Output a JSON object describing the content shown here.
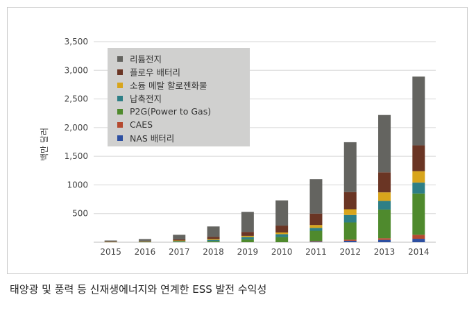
{
  "caption": "태양광 및 풍력 등 신재생에너지와 연계한 ESS 발전 수익성",
  "chart_data": {
    "type": "bar",
    "stacked": true,
    "ylabel": "백만 달러",
    "xlabel": "",
    "title": "",
    "ylim": [
      0,
      3500
    ],
    "yticks": [
      "500",
      "1000",
      "1,500",
      "2,000",
      "2,500",
      "3,000",
      "3,500"
    ],
    "ytick_values": [
      500,
      1000,
      1500,
      2000,
      2500,
      3000,
      3500
    ],
    "grid": true,
    "legend_position": "top-left",
    "categories": [
      "2015",
      "2016",
      "2017",
      "2018",
      "2019",
      "2010",
      "2011",
      "2012",
      "2013",
      "2014"
    ],
    "series": [
      {
        "name": "NAS 배터리",
        "color": "#2d4fa1",
        "values": [
          0,
          0,
          0,
          0,
          0,
          0,
          10,
          25,
          40,
          60
        ]
      },
      {
        "name": "CAES",
        "color": "#b5492f",
        "values": [
          0,
          0,
          0,
          0,
          0,
          0,
          10,
          20,
          30,
          70
        ]
      },
      {
        "name": "P2G(Power to Gas)",
        "color": "#4f8a2d",
        "values": [
          0,
          5,
          10,
          20,
          50,
          90,
          180,
          300,
          500,
          720
        ]
      },
      {
        "name": "납축전지",
        "color": "#2e7f86",
        "values": [
          0,
          5,
          10,
          20,
          40,
          50,
          50,
          130,
          150,
          190
        ]
      },
      {
        "name": "소듐 메탈 할로젠화물",
        "color": "#d8a51c",
        "values": [
          5,
          5,
          10,
          15,
          20,
          30,
          50,
          100,
          150,
          200
        ]
      },
      {
        "name": "플로우 배터리",
        "color": "#6a3524",
        "values": [
          5,
          10,
          20,
          40,
          70,
          120,
          200,
          300,
          350,
          450
        ]
      },
      {
        "name": "리튬전지",
        "color": "#646460",
        "values": [
          20,
          30,
          80,
          180,
          350,
          440,
          600,
          870,
          1000,
          1200
        ]
      }
    ],
    "legend_order": [
      "리튬전지",
      "플로우 배터리",
      "소듐 메탈 할로젠화물",
      "납축전지",
      "P2G(Power to Gas)",
      "CAES",
      "NAS 배터리"
    ]
  },
  "legend": [
    {
      "label": "리튬전지",
      "color": "#646460"
    },
    {
      "label": "플로우 배터리",
      "color": "#6a3524"
    },
    {
      "label": "소듐 메탈 할로젠화물",
      "color": "#d8a51c"
    },
    {
      "label": "납축전지",
      "color": "#2e7f86"
    },
    {
      "label": "P2G(Power to Gas)",
      "color": "#4f8a2d"
    },
    {
      "label": "CAES",
      "color": "#b5492f"
    },
    {
      "label": "NAS 배터리",
      "color": "#2d4fa1"
    }
  ]
}
